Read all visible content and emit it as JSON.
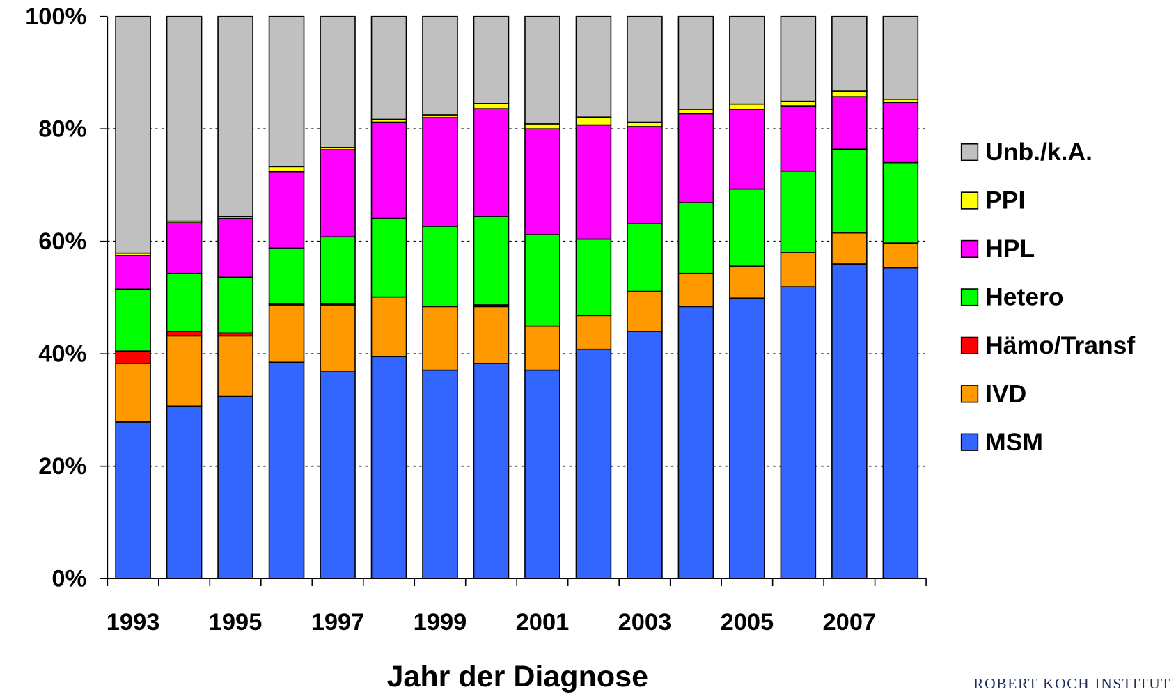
{
  "chart_data": {
    "type": "bar",
    "stacked": true,
    "x_label": "Jahr der Diagnose",
    "source": "ROBERT KOCH INSTITUT",
    "categories": [
      "1993",
      null,
      "1995",
      null,
      "1997",
      null,
      "1999",
      null,
      "2001",
      null,
      "2003",
      null,
      "2005",
      null,
      "2007",
      null
    ],
    "series": [
      {
        "name": "MSM",
        "color": "#3366ff",
        "values": [
          27.9,
          30.7,
          32.4,
          38.5,
          36.8,
          39.5,
          37.1,
          38.3,
          37.1,
          40.8,
          44.0,
          48.4,
          49.9,
          51.9,
          56.0,
          55.3
        ]
      },
      {
        "name": "IVD",
        "color": "#ff9900",
        "values": [
          10.4,
          12.5,
          10.8,
          10.2,
          11.9,
          10.6,
          11.3,
          10.1,
          7.8,
          6.0,
          7.1,
          5.9,
          5.7,
          6.1,
          5.5,
          4.4
        ]
      },
      {
        "name": "Hämo/Transf",
        "color": "#ff0000",
        "values": [
          2.2,
          0.8,
          0.5,
          0.2,
          0.2,
          0,
          0,
          0.3,
          0,
          0,
          0,
          0,
          0,
          0,
          0,
          0
        ]
      },
      {
        "name": "Hetero",
        "color": "#00ff00",
        "values": [
          11.0,
          10.3,
          9.9,
          9.9,
          11.9,
          14.0,
          14.3,
          15.7,
          16.3,
          13.6,
          12.1,
          12.6,
          13.7,
          14.5,
          14.9,
          14.3
        ]
      },
      {
        "name": "HPL",
        "color": "#ff00ff",
        "values": [
          6.0,
          9.0,
          10.5,
          13.6,
          15.5,
          17.1,
          19.3,
          19.2,
          18.8,
          20.3,
          17.2,
          15.8,
          14.2,
          11.6,
          9.3,
          10.7
        ]
      },
      {
        "name": "PPI",
        "color": "#ffff00",
        "values": [
          0.4,
          0.3,
          0.3,
          0.9,
          0.4,
          0.5,
          0.5,
          0.9,
          0.9,
          1.4,
          0.8,
          0.8,
          0.9,
          0.8,
          1.0,
          0.5
        ]
      },
      {
        "name": "Unb./k.A.",
        "color": "#c0c0c0",
        "values": [
          42.1,
          36.4,
          35.6,
          26.7,
          23.3,
          18.3,
          17.5,
          15.5,
          19.1,
          17.9,
          18.8,
          16.5,
          15.6,
          15.1,
          13.3,
          14.8
        ]
      }
    ],
    "ylim": [
      0,
      100
    ],
    "yticks": [
      {
        "value": 0,
        "label": "0%"
      },
      {
        "value": 20,
        "label": "20%"
      },
      {
        "value": 40,
        "label": "40%"
      },
      {
        "value": 60,
        "label": "60%"
      },
      {
        "value": 80,
        "label": "80%"
      },
      {
        "value": 100,
        "label": "100%"
      }
    ],
    "grid": true,
    "legend": "right"
  }
}
